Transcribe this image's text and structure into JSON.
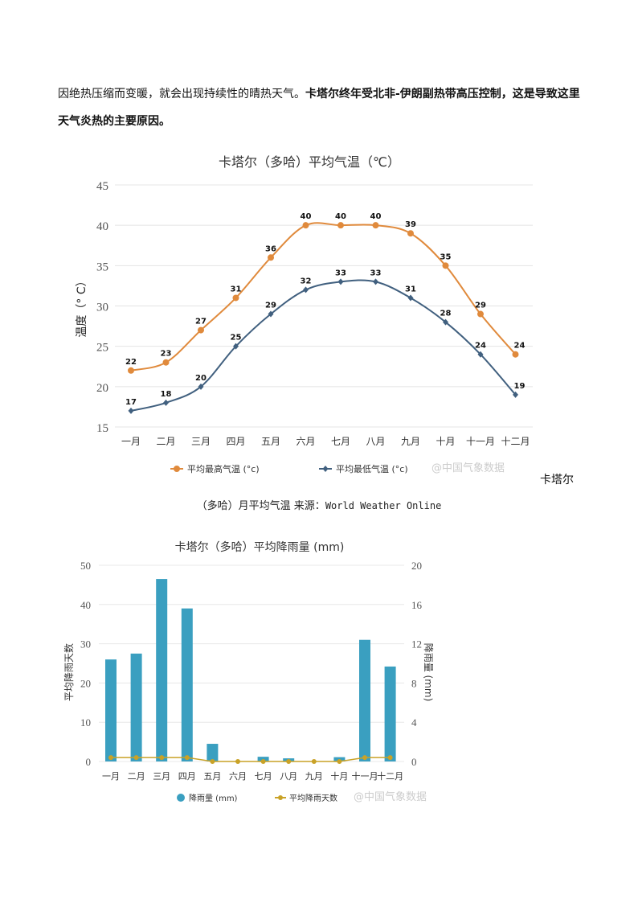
{
  "paragraph": {
    "normal": "因绝热压缩而变暖，就会出现持续性的晴热天气。",
    "bold": "卡塔尔终年受北非-伊朗副热带高压控制，这是导致这里天气炎热的主要原因。"
  },
  "side_text": "卡塔尔",
  "caption": {
    "text": "（多哈）月平均气温 来源：",
    "source": "World Weather Online"
  },
  "watermark": "@中国气象数据",
  "chart_data": [
    {
      "type": "line",
      "title": "卡塔尔（多哈）平均气温（℃）",
      "ylabel": "温度（° C）",
      "xlabel": "",
      "categories": [
        "一月",
        "二月",
        "三月",
        "四月",
        "五月",
        "六月",
        "七月",
        "八月",
        "九月",
        "十月",
        "十一月",
        "十二月"
      ],
      "ylim": [
        15,
        45
      ],
      "yticks": [
        15,
        20,
        25,
        30,
        35,
        40,
        45
      ],
      "grid": true,
      "legend": "bottom",
      "series": [
        {
          "name": "平均最高气温 (°c)",
          "color": "#e08a3c",
          "marker": "circle",
          "values": [
            22,
            23,
            27,
            31,
            36,
            40,
            40,
            40,
            39,
            35,
            29,
            24
          ]
        },
        {
          "name": "平均最低气温 (°c)",
          "color": "#41607f",
          "marker": "diamond",
          "values": [
            17,
            18,
            20,
            25,
            29,
            32,
            33,
            33,
            31,
            28,
            24,
            19
          ]
        }
      ]
    },
    {
      "type": "bar",
      "title": "卡塔尔（多哈）平均降雨量 (mm)",
      "ylabel_left": "平均降雨天数",
      "ylabel_right": "降雨量 (mm)",
      "categories": [
        "一月",
        "二月",
        "三月",
        "四月",
        "五月",
        "六月",
        "七月",
        "八月",
        "九月",
        "十月",
        "十一月",
        "十二月"
      ],
      "ylim_left": [
        0,
        50
      ],
      "yticks_left": [
        0,
        10,
        20,
        30,
        40,
        50
      ],
      "ylim_right": [
        0,
        20
      ],
      "yticks_right": [
        0,
        4,
        8,
        12,
        16,
        20
      ],
      "grid": true,
      "legend": "bottom",
      "series": [
        {
          "name": "降雨量 (mm)",
          "type": "bar",
          "axis": "left",
          "color": "#3a9fc0",
          "values": [
            26,
            27.5,
            46.5,
            39,
            4.5,
            0,
            1.2,
            0.8,
            0,
            1.1,
            31,
            24.2
          ]
        },
        {
          "name": "平均降雨天数",
          "type": "line",
          "axis": "right",
          "color": "#c9a227",
          "values": [
            0.4,
            0.4,
            0.4,
            0.4,
            0,
            0,
            0,
            0,
            0,
            0,
            0.4,
            0.4
          ]
        }
      ]
    }
  ]
}
